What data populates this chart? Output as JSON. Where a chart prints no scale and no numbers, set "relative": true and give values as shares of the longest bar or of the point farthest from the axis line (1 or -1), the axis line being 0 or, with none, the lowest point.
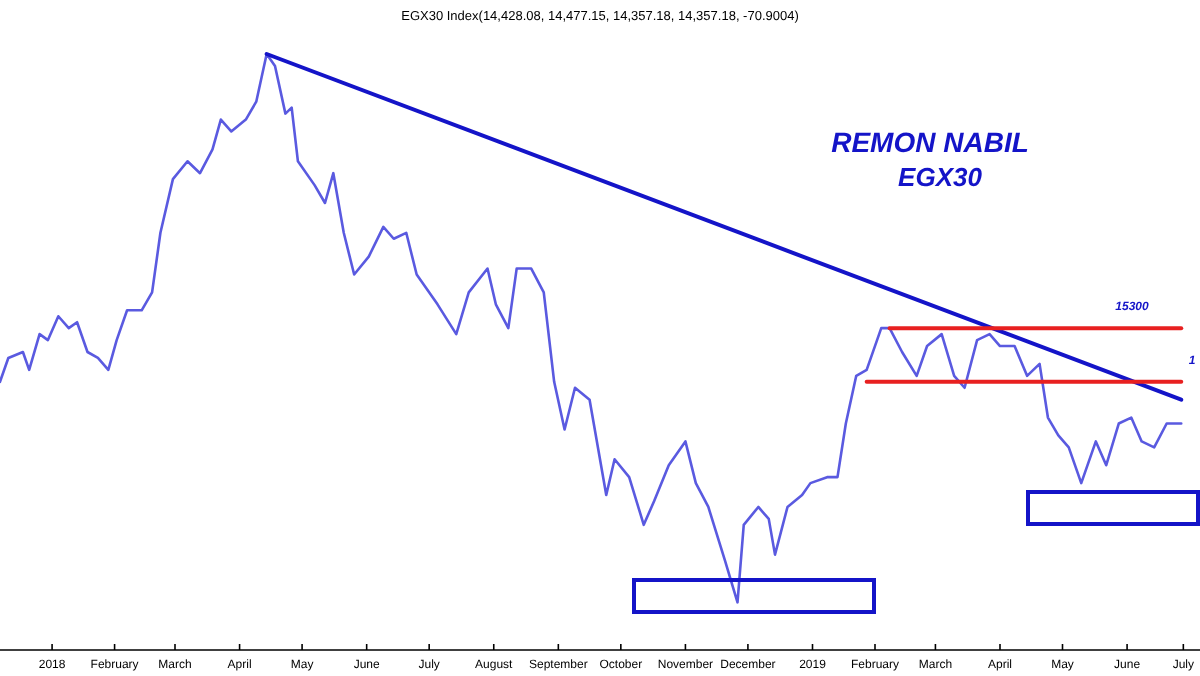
{
  "chart_data": {
    "type": "line",
    "title": "EGX30 Index(14,428.08, 14,477.15, 14,357.18, 14,357.18, -70.9004)",
    "relative": true,
    "grid": false,
    "annotations": [
      "REMON NABIL",
      "EGX30",
      "15300",
      "1"
    ],
    "xlim": [
      "2017-12-21",
      "2019-07-20"
    ],
    "xticks": [
      {
        "value": "2018-01-15",
        "label": "2018"
      },
      {
        "value": "2018-02-14",
        "label": "February"
      },
      {
        "value": "2018-03-15",
        "label": "March"
      },
      {
        "value": "2018-04-15",
        "label": "April"
      },
      {
        "value": "2018-05-15",
        "label": "May"
      },
      {
        "value": "2018-06-15",
        "label": "June"
      },
      {
        "value": "2018-07-15",
        "label": "July"
      },
      {
        "value": "2018-08-15",
        "label": "August"
      },
      {
        "value": "2018-09-15",
        "label": "September"
      },
      {
        "value": "2018-10-15",
        "label": "October"
      },
      {
        "value": "2018-11-15",
        "label": "November"
      },
      {
        "value": "2018-12-15",
        "label": "December"
      },
      {
        "value": "2019-01-15",
        "label": "2019"
      },
      {
        "value": "2019-02-14",
        "label": "February"
      },
      {
        "value": "2019-03-15",
        "label": "March"
      },
      {
        "value": "2019-04-15",
        "label": "April"
      },
      {
        "value": "2019-05-15",
        "label": "May"
      },
      {
        "value": "2019-06-15",
        "label": "June"
      },
      {
        "value": "2019-07-12",
        "label": "July"
      }
    ],
    "series": [
      {
        "color": "#5a5ae0",
        "x": [
          "2017-12-21",
          "2017-12-25",
          "2018-01-01",
          "2018-01-04",
          "2018-01-09",
          "2018-01-13",
          "2018-01-18",
          "2018-01-23",
          "2018-01-27",
          "2018-02-01",
          "2018-02-06",
          "2018-02-11",
          "2018-02-15",
          "2018-02-20",
          "2018-02-27",
          "2018-03-04",
          "2018-03-08",
          "2018-03-14",
          "2018-03-21",
          "2018-03-27",
          "2018-04-02",
          "2018-04-06",
          "2018-04-11",
          "2018-04-18",
          "2018-04-23",
          "2018-04-28",
          "2018-05-02",
          "2018-05-07",
          "2018-05-10",
          "2018-05-13",
          "2018-05-21",
          "2018-05-26",
          "2018-05-30",
          "2018-06-04",
          "2018-06-09",
          "2018-06-16",
          "2018-06-23",
          "2018-06-28",
          "2018-07-04",
          "2018-07-09",
          "2018-07-19",
          "2018-07-28",
          "2018-08-03",
          "2018-08-12",
          "2018-08-16",
          "2018-08-22",
          "2018-08-26",
          "2018-09-02",
          "2018-09-08",
          "2018-09-13",
          "2018-09-18",
          "2018-09-23",
          "2018-09-30",
          "2018-10-08",
          "2018-10-12",
          "2018-10-19",
          "2018-10-26",
          "2018-10-31",
          "2018-11-07",
          "2018-11-15",
          "2018-11-20",
          "2018-11-26",
          "2018-12-04",
          "2018-12-10",
          "2018-12-13",
          "2018-12-20",
          "2018-12-25",
          "2018-12-28",
          "2019-01-03",
          "2019-01-10",
          "2019-01-14",
          "2019-01-22",
          "2019-01-27",
          "2019-01-31",
          "2019-02-05",
          "2019-02-10",
          "2019-02-17",
          "2019-02-21",
          "2019-02-27",
          "2019-03-06",
          "2019-03-11",
          "2019-03-18",
          "2019-03-24",
          "2019-03-29",
          "2019-04-04",
          "2019-04-10",
          "2019-04-15",
          "2019-04-22",
          "2019-04-28",
          "2019-05-04",
          "2019-05-08",
          "2019-05-13",
          "2019-05-18",
          "2019-05-24",
          "2019-05-31",
          "2019-06-05",
          "2019-06-11",
          "2019-06-17",
          "2019-06-22",
          "2019-06-28",
          "2019-07-04",
          "2019-07-11"
        ],
        "values": [
          0.45,
          0.49,
          0.5,
          0.47,
          0.53,
          0.52,
          0.56,
          0.54,
          0.55,
          0.5,
          0.49,
          0.47,
          0.52,
          0.57,
          0.57,
          0.6,
          0.7,
          0.79,
          0.82,
          0.8,
          0.84,
          0.89,
          0.87,
          0.89,
          0.92,
          1.0,
          0.98,
          0.9,
          0.91,
          0.82,
          0.78,
          0.75,
          0.8,
          0.7,
          0.63,
          0.66,
          0.71,
          0.69,
          0.7,
          0.63,
          0.58,
          0.53,
          0.6,
          0.64,
          0.58,
          0.54,
          0.64,
          0.64,
          0.6,
          0.45,
          0.37,
          0.44,
          0.42,
          0.26,
          0.32,
          0.29,
          0.21,
          0.25,
          0.31,
          0.35,
          0.28,
          0.24,
          0.15,
          0.08,
          0.21,
          0.24,
          0.22,
          0.16,
          0.24,
          0.26,
          0.28,
          0.29,
          0.29,
          0.38,
          0.46,
          0.47,
          0.54,
          0.54,
          0.5,
          0.46,
          0.51,
          0.53,
          0.46,
          0.44,
          0.52,
          0.53,
          0.51,
          0.51,
          0.46,
          0.48,
          0.39,
          0.36,
          0.34,
          0.28,
          0.35,
          0.31,
          0.38,
          0.39,
          0.35,
          0.34,
          0.38,
          0.38
        ]
      },
      {
        "type": "line",
        "color": "#1414c8",
        "x": [
          "2018-04-28",
          "2019-07-11"
        ],
        "values": [
          1.0,
          0.42
        ]
      },
      {
        "type": "line",
        "color": "#e82020",
        "x": [
          "2019-02-21",
          "2019-07-11"
        ],
        "values": [
          0.54,
          0.54
        ]
      },
      {
        "type": "line",
        "color": "#e82020",
        "x": [
          "2019-02-10",
          "2019-07-11"
        ],
        "values": [
          0.45,
          0.45
        ]
      }
    ]
  }
}
